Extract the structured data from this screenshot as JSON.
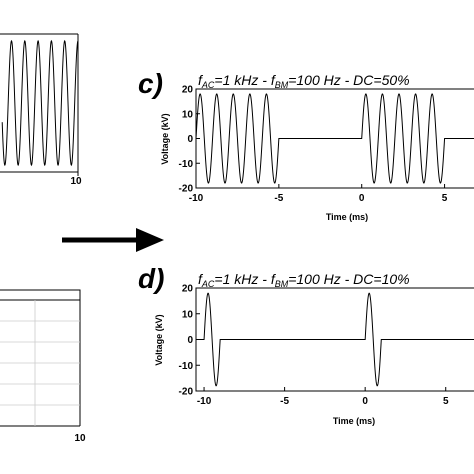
{
  "chart_data": [
    {
      "type": "line",
      "panel_letter": "",
      "title": "",
      "xlabel": "",
      "ylabel": "",
      "x_ticks": [
        "10"
      ],
      "xlim": [
        0,
        10
      ],
      "ylim": [
        -20,
        20
      ],
      "waveform": {
        "kind": "continuous sine",
        "frequency_kHz": 1,
        "amplitude_kV": 18,
        "visible_x_ms": [
          4.3,
          10
        ]
      },
      "grid": false
    },
    {
      "type": "line",
      "panel_letter": "c)",
      "title": {
        "f_ac_label": "f",
        "f_ac_sub": "AC",
        "f_ac_value": "=1 kHz - ",
        "f_bm_label": "f",
        "f_bm_sub": "BM",
        "f_bm_value": "=100 Hz - DC=50%"
      },
      "xlabel": "Time (ms)",
      "ylabel": "Voltage (kV)",
      "x_ticks": [
        "-10",
        "-5",
        "0",
        "5"
      ],
      "y_ticks": [
        "20",
        "10",
        "0",
        "-10",
        "-20"
      ],
      "xlim": [
        -10,
        7.5
      ],
      "ylim": [
        -20,
        20
      ],
      "burst": {
        "carrier_kHz": 1,
        "modulation_Hz": 100,
        "duty_cycle": 0.5,
        "amplitude_kV": 18,
        "on_windows_ms": [
          [
            -10,
            -5
          ],
          [
            0,
            5
          ]
        ]
      },
      "grid": false
    },
    {
      "type": "line",
      "panel_letter": "d)",
      "title": {
        "f_ac_label": "f",
        "f_ac_sub": "AC",
        "f_ac_value": "=1 kHz - ",
        "f_bm_label": "f",
        "f_bm_sub": "BM",
        "f_bm_value": "=100 Hz - DC=10%"
      },
      "xlabel": "Time (ms)",
      "ylabel": "Voltage (kV)",
      "x_ticks": [
        "-10",
        "-5",
        "0",
        "5"
      ],
      "y_ticks": [
        "20",
        "10",
        "0",
        "-10",
        "-20"
      ],
      "xlim": [
        -10.5,
        7.5
      ],
      "ylim": [
        -20,
        20
      ],
      "burst": {
        "carrier_kHz": 1,
        "modulation_Hz": 100,
        "duty_cycle": 0.1,
        "amplitude_kV": 18,
        "on_windows_ms": [
          [
            -10,
            -9
          ],
          [
            0,
            1
          ]
        ]
      },
      "grid": false
    },
    {
      "type": "line",
      "panel_letter": "",
      "title": "",
      "xlabel": "",
      "ylabel": "",
      "x_ticks": [
        "10"
      ],
      "xlim": [
        0,
        10
      ],
      "grid": true
    }
  ],
  "arrow": {
    "direction": "right",
    "color": "#000000"
  },
  "colors": {
    "trace": "#000000",
    "axis": "#000000",
    "grid": "#cccccc"
  }
}
